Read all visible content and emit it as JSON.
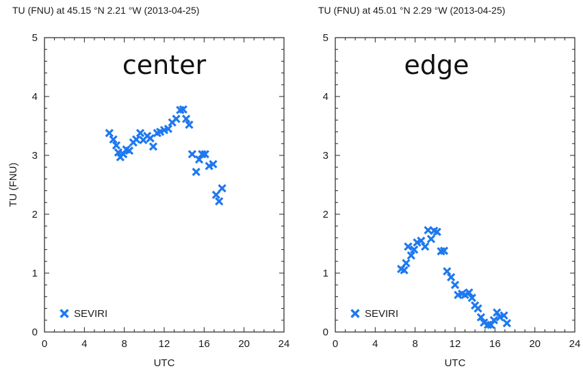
{
  "chart_data": [
    {
      "type": "scatter",
      "title": "TU (FNU) at 45.15 °N 2.21 °W (2013-04-25)",
      "annotation": "center",
      "xlabel": "UTC",
      "ylabel": "TU (FNU)",
      "xlim": [
        0,
        24
      ],
      "ylim": [
        0,
        5
      ],
      "xticks": [
        "0",
        "4",
        "8",
        "12",
        "16",
        "20",
        "24"
      ],
      "yticks": [
        "0",
        "1",
        "2",
        "3",
        "4",
        "5"
      ],
      "legend": "bottom-left",
      "series": [
        {
          "name": "SEVIRI",
          "color": "#1e78f0",
          "marker": "x",
          "x": [
            6.5,
            6.9,
            7.2,
            7.4,
            7.6,
            7.9,
            8.2,
            8.5,
            8.9,
            9.2,
            9.6,
            9.9,
            10.3,
            10.6,
            10.9,
            11.3,
            11.6,
            12.0,
            12.4,
            12.8,
            13.2,
            13.6,
            13.9,
            14.2,
            14.5,
            14.8,
            15.2,
            15.5,
            15.8,
            16.1,
            16.5,
            16.9,
            17.2,
            17.5,
            17.8
          ],
          "y": [
            3.38,
            3.27,
            3.17,
            3.05,
            2.97,
            3.02,
            3.1,
            3.08,
            3.22,
            3.27,
            3.38,
            3.26,
            3.33,
            3.29,
            3.15,
            3.38,
            3.4,
            3.43,
            3.45,
            3.56,
            3.62,
            3.77,
            3.78,
            3.62,
            3.52,
            3.02,
            2.72,
            2.93,
            3.02,
            3.02,
            2.82,
            2.85,
            2.33,
            2.22,
            2.44
          ]
        }
      ]
    },
    {
      "type": "scatter",
      "title": "TU (FNU) at 45.01 °N 2.29 °W (2013-04-25)",
      "annotation": "edge",
      "xlabel": "UTC",
      "xlim": [
        0,
        24
      ],
      "ylim": [
        0,
        5
      ],
      "xticks": [
        "0",
        "4",
        "8",
        "12",
        "16",
        "20",
        "24"
      ],
      "yticks": [
        "0",
        "1",
        "2",
        "3",
        "4",
        "5"
      ],
      "legend": "bottom-left",
      "series": [
        {
          "name": "SEVIRI",
          "color": "#1e78f0",
          "marker": "x",
          "x": [
            6.6,
            6.9,
            7.1,
            7.3,
            7.6,
            7.9,
            8.2,
            8.6,
            9.0,
            9.3,
            9.6,
            9.9,
            10.2,
            10.6,
            10.9,
            11.2,
            11.6,
            12.0,
            12.3,
            12.7,
            13.0,
            13.4,
            13.7,
            14.0,
            14.3,
            14.6,
            14.9,
            15.3,
            15.6,
            15.9,
            16.2,
            16.5,
            16.9,
            17.2
          ],
          "y": [
            1.07,
            1.05,
            1.17,
            1.45,
            1.3,
            1.4,
            1.52,
            1.55,
            1.45,
            1.73,
            1.58,
            1.72,
            1.7,
            1.37,
            1.38,
            1.03,
            0.93,
            0.8,
            0.63,
            0.65,
            0.63,
            0.67,
            0.58,
            0.45,
            0.4,
            0.25,
            0.16,
            0.12,
            0.12,
            0.2,
            0.33,
            0.25,
            0.28,
            0.15
          ]
        }
      ]
    }
  ]
}
